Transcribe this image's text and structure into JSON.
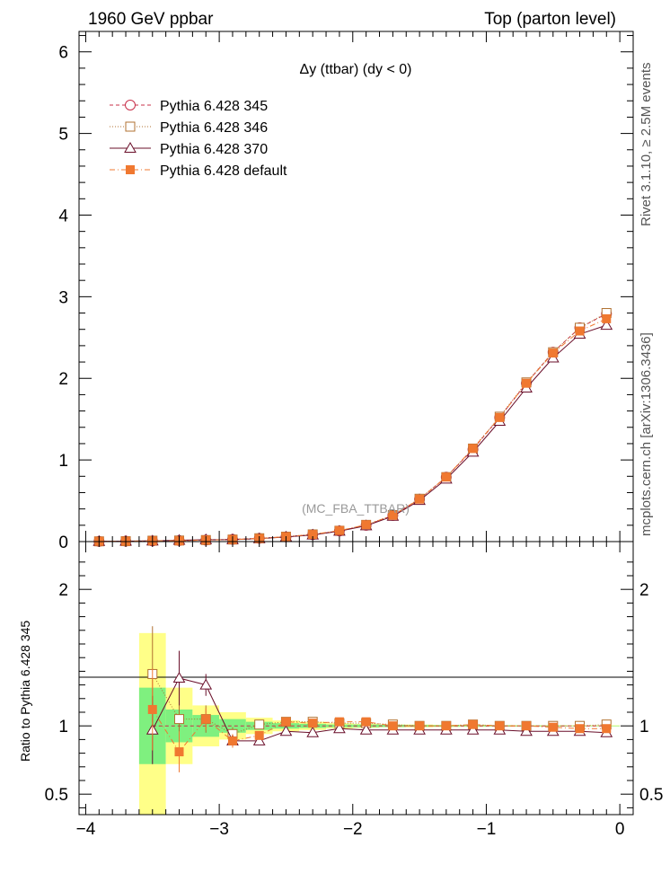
{
  "header": {
    "left_title": "1960 GeV ppbar",
    "right_title": "Top (parton level)"
  },
  "side_labels": {
    "rivet": "Rivet 3.1.10, ≥ 2.5M events",
    "mcplots": "mcplots.cern.ch [arXiv:1306.3436]"
  },
  "ratio_ylabel": "Ratio to Pythia 6.428 345",
  "chart_data": {
    "type": "line",
    "title": "Δy (ttbar) (dy < 0)",
    "watermark": "(MC_FBA_TTBAR)",
    "xlim": [
      -4.05,
      0.1
    ],
    "ylim_main": [
      0,
      6.25
    ],
    "ylim_ratio": [
      0.35,
      2.35
    ],
    "x_ticks": [
      -4,
      -3,
      -2,
      -1,
      0
    ],
    "x_tick_labels": [
      "−4",
      "−3",
      "−2",
      "−1",
      "0"
    ],
    "y_ticks_main": [
      0,
      1,
      2,
      3,
      4,
      5,
      6
    ],
    "y_tick_labels_main": [
      "0",
      "1",
      "2",
      "3",
      "4",
      "5",
      "6"
    ],
    "y_ticks_ratio": [
      0.5,
      1,
      2
    ],
    "y_tick_labels_ratio": [
      "0.5",
      "1",
      "2"
    ],
    "x": [
      -3.9,
      -3.7,
      -3.5,
      -3.3,
      -3.1,
      -2.9,
      -2.7,
      -2.5,
      -2.3,
      -2.1,
      -1.9,
      -1.7,
      -1.5,
      -1.3,
      -1.1,
      -0.9,
      -0.7,
      -0.5,
      -0.3,
      -0.1
    ],
    "series": [
      {
        "name": "Pythia 6.428 345",
        "color": "#c8304a",
        "marker": "circle",
        "dash": "4,3",
        "values": [
          0.003,
          0.005,
          0.008,
          0.012,
          0.018,
          0.027,
          0.04,
          0.058,
          0.085,
          0.13,
          0.2,
          0.32,
          0.52,
          0.79,
          1.13,
          1.52,
          1.94,
          2.32,
          2.62,
          2.79
        ]
      },
      {
        "name": "Pythia 6.428 346",
        "color": "#b07030",
        "marker": "square",
        "dash": "1,2",
        "values": [
          0.003,
          0.005,
          0.011,
          0.013,
          0.019,
          0.025,
          0.041,
          0.06,
          0.088,
          0.133,
          0.205,
          0.325,
          0.525,
          0.79,
          1.14,
          1.53,
          1.95,
          2.32,
          2.62,
          2.8
        ]
      },
      {
        "name": "Pythia 6.428 370",
        "color": "#6a0f2a",
        "marker": "triangle",
        "dash": "",
        "values": [
          0.003,
          0.005,
          0.0078,
          0.0162,
          0.0234,
          0.024,
          0.0356,
          0.056,
          0.0808,
          0.1274,
          0.194,
          0.3104,
          0.5044,
          0.7663,
          1.0961,
          1.4744,
          1.8818,
          2.2504,
          2.5414,
          2.6505
        ]
      },
      {
        "name": "Pythia 6.428 default",
        "color": "#f07830",
        "marker": "filled-square",
        "dash": "6,3,1,3",
        "values": [
          0.003,
          0.005,
          0.009,
          0.0097,
          0.019,
          0.024,
          0.037,
          0.06,
          0.087,
          0.135,
          0.206,
          0.322,
          0.52,
          0.79,
          1.14,
          1.52,
          1.94,
          2.31,
          2.58,
          2.73
        ]
      }
    ],
    "ratio": {
      "reference": "Pythia 6.428 345",
      "band_x_ranges": [
        [
          -3.6,
          -3.4
        ],
        [
          -3.4,
          -3.2
        ],
        [
          -3.2,
          -3.0
        ],
        [
          -3.0,
          -2.8
        ],
        [
          -2.8,
          -2.6
        ],
        [
          -2.6,
          -2.4
        ],
        [
          -2.4,
          -2.2
        ],
        [
          -2.2,
          -2.0
        ],
        [
          -2.0,
          -1.8
        ],
        [
          -1.8,
          -1.6
        ],
        [
          -1.6,
          -1.4
        ],
        [
          -1.4,
          -1.2
        ],
        [
          -1.2,
          -1.0
        ],
        [
          -1.0,
          -0.8
        ],
        [
          -0.8,
          -0.6
        ],
        [
          -0.6,
          -0.4
        ],
        [
          -0.4,
          -0.2
        ],
        [
          -0.2,
          0.0
        ]
      ],
      "band_inner": [
        [
          0.72,
          1.28
        ],
        [
          0.88,
          1.12
        ],
        [
          0.92,
          1.08
        ],
        [
          0.95,
          1.05
        ],
        [
          0.97,
          1.03
        ],
        [
          0.98,
          1.02
        ],
        [
          0.985,
          1.015
        ],
        [
          0.99,
          1.01
        ],
        [
          0.99,
          1.01
        ],
        [
          0.992,
          1.008
        ],
        [
          0.994,
          1.006
        ],
        [
          0.995,
          1.005
        ],
        [
          0.996,
          1.004
        ],
        [
          0.996,
          1.004
        ],
        [
          0.997,
          1.003
        ],
        [
          0.997,
          1.003
        ],
        [
          0.998,
          1.002
        ],
        [
          0.998,
          1.002
        ]
      ],
      "band_outer": [
        [
          0.35,
          1.68
        ],
        [
          0.72,
          1.28
        ],
        [
          0.85,
          1.15
        ],
        [
          0.9,
          1.1
        ],
        [
          0.94,
          1.06
        ],
        [
          0.96,
          1.04
        ],
        [
          0.97,
          1.03
        ],
        [
          0.98,
          1.02
        ],
        [
          0.985,
          1.015
        ],
        [
          0.99,
          1.01
        ],
        [
          0.99,
          1.01
        ],
        [
          0.992,
          1.008
        ],
        [
          0.993,
          1.007
        ],
        [
          0.994,
          1.006
        ],
        [
          0.995,
          1.005
        ],
        [
          0.995,
          1.005
        ],
        [
          0.996,
          1.004
        ],
        [
          0.996,
          1.004
        ]
      ],
      "x": [
        -3.5,
        -3.3,
        -3.1,
        -2.9,
        -2.7,
        -2.5,
        -2.3,
        -2.1,
        -1.9,
        -1.7,
        -1.5,
        -1.3,
        -1.1,
        -0.9,
        -0.7,
        -0.5,
        -0.3,
        -0.1
      ],
      "series": [
        {
          "name": "Pythia 6.428 345",
          "values": [
            1.0,
            1.0,
            1.0,
            1.0,
            1.0,
            1.0,
            1.0,
            1.0,
            1.0,
            1.0,
            1.0,
            1.0,
            1.0,
            1.0,
            1.0,
            1.0,
            1.0,
            1.0
          ]
        },
        {
          "name": "Pythia 6.428 346",
          "values": [
            1.38,
            1.05,
            1.05,
            0.94,
            1.01,
            1.03,
            1.03,
            1.02,
            1.02,
            1.01,
            1.0,
            1.0,
            1.01,
            1.0,
            1.0,
            1.0,
            1.0,
            1.01
          ],
          "errors": [
            0.35,
            0.2,
            0.1,
            0.05,
            0.03,
            0.02,
            0.015,
            0.01,
            0.01,
            0.01,
            0.008,
            0.006,
            0.005,
            0.005,
            0.004,
            0.004,
            0.003,
            0.003
          ]
        },
        {
          "name": "Pythia 6.428 370",
          "values": [
            0.97,
            1.35,
            1.3,
            0.89,
            0.89,
            0.96,
            0.95,
            0.98,
            0.97,
            0.97,
            0.97,
            0.97,
            0.97,
            0.97,
            0.96,
            0.96,
            0.96,
            0.95
          ],
          "errors": [
            0.25,
            0.2,
            0.08,
            0.04,
            0.02,
            0.015,
            0.012,
            0.01,
            0.008,
            0.007,
            0.006,
            0.005,
            0.005,
            0.004,
            0.004,
            0.004,
            0.003,
            0.003
          ]
        },
        {
          "name": "Pythia 6.428 default",
          "values": [
            1.12,
            0.81,
            1.05,
            0.89,
            0.93,
            1.03,
            1.02,
            1.03,
            1.03,
            1.0,
            1.0,
            1.0,
            1.01,
            1.0,
            1.0,
            0.99,
            0.98,
            0.98
          ],
          "errors": [
            0.3,
            0.15,
            0.08,
            0.05,
            0.02,
            0.015,
            0.012,
            0.01,
            0.008,
            0.007,
            0.006,
            0.005,
            0.005,
            0.004,
            0.004,
            0.004,
            0.003,
            0.003
          ]
        }
      ]
    }
  }
}
